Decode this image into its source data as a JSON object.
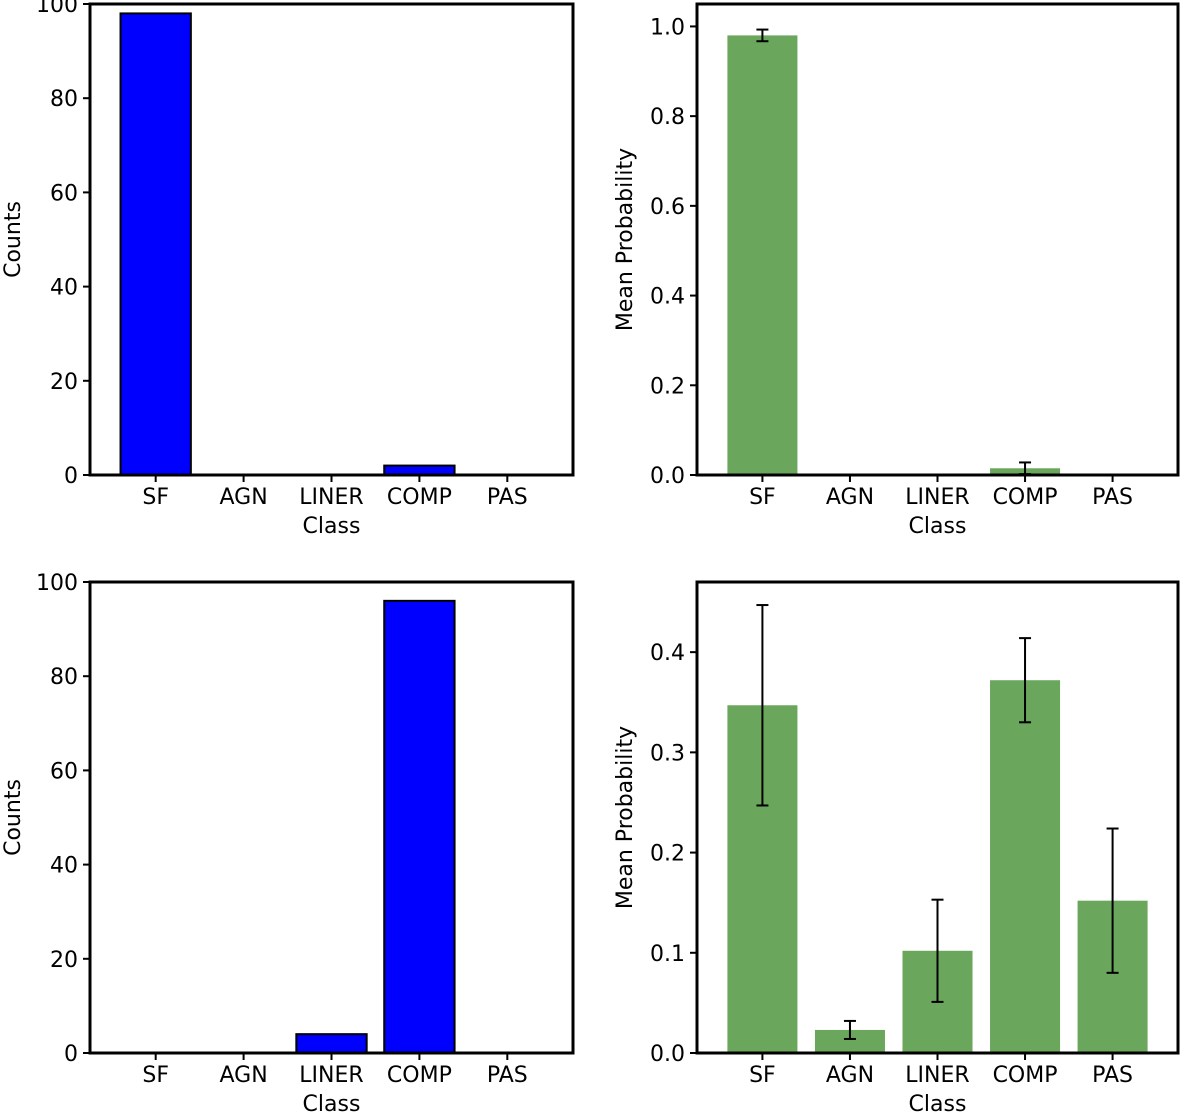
{
  "chart_data": [
    {
      "type": "bar",
      "categories": [
        "SF",
        "AGN",
        "LINER",
        "COMP",
        "PAS"
      ],
      "values": [
        98,
        0,
        0,
        2,
        0
      ],
      "ylabel": "Counts",
      "xlabel": "Class",
      "ylim": [
        0,
        100
      ],
      "yticks": [
        "0",
        "20",
        "40",
        "60",
        "80",
        "100"
      ],
      "bar_color": "#0000ff",
      "bar_edge_color": "#000000",
      "grid": false
    },
    {
      "type": "bar",
      "categories": [
        "SF",
        "AGN",
        "LINER",
        "COMP",
        "PAS"
      ],
      "values": [
        0.98,
        0,
        0,
        0.015,
        0
      ],
      "errors": [
        0.013,
        0,
        0,
        0.013,
        0
      ],
      "ylabel": "Mean Probability",
      "xlabel": "Class",
      "ylim": [
        0,
        1.05
      ],
      "yticks": [
        "0.0",
        "0.2",
        "0.4",
        "0.6",
        "0.8",
        "1.0"
      ],
      "bar_color": "#6aa75d",
      "grid": false
    },
    {
      "type": "bar",
      "categories": [
        "SF",
        "AGN",
        "LINER",
        "COMP",
        "PAS"
      ],
      "values": [
        0,
        0,
        4,
        96,
        0
      ],
      "ylabel": "Counts",
      "xlabel": "Class",
      "ylim": [
        0,
        100
      ],
      "yticks": [
        "0",
        "20",
        "40",
        "60",
        "80",
        "100"
      ],
      "bar_color": "#0000ff",
      "bar_edge_color": "#000000",
      "grid": false
    },
    {
      "type": "bar",
      "categories": [
        "SF",
        "AGN",
        "LINER",
        "COMP",
        "PAS"
      ],
      "values": [
        0.347,
        0.023,
        0.102,
        0.372,
        0.152
      ],
      "errors": [
        0.1,
        0.009,
        0.051,
        0.042,
        0.072
      ],
      "ylabel": "Mean Probability",
      "xlabel": "Class",
      "ylim": [
        0,
        0.47
      ],
      "yticks": [
        "0.0",
        "0.1",
        "0.2",
        "0.3",
        "0.4"
      ],
      "bar_color": "#6aa75d",
      "grid": false
    }
  ]
}
